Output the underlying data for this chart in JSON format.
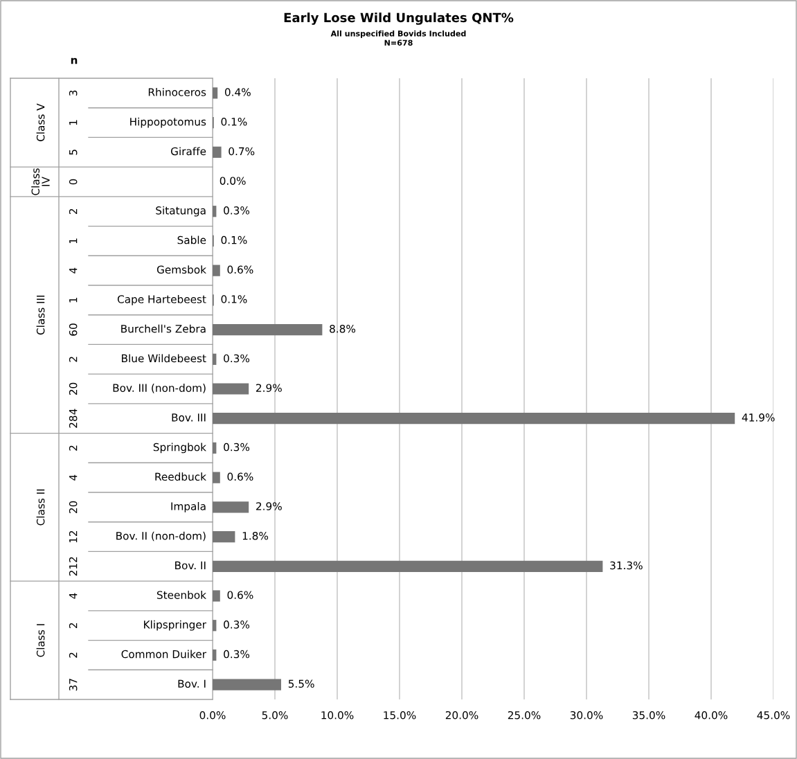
{
  "chart_data": {
    "type": "bar",
    "orientation": "horizontal",
    "title": "Early Lose Wild Ungulates QNT%",
    "subtitle": "All unspecified Bovids Included\nN=678",
    "categories": [
      "Rhinoceros",
      "Hippopotomus",
      "Giraffe",
      null,
      "Sitatunga",
      "Sable",
      "Gemsbok",
      "Cape Hartebeest",
      "Burchell's Zebra",
      "Blue Wildebeest",
      "Bov. III (non-dom)",
      "Bov. III",
      "Springbok",
      "Reedbuck",
      "Impala",
      "Bov. II (non-dom)",
      "Bov. II",
      "Steenbok",
      "Klipspringer",
      "Common Duiker",
      "Bov. I"
    ],
    "y2_categories": [
      "3",
      "1",
      "5",
      "0",
      "2",
      "1",
      "4",
      "1",
      "60",
      "2",
      "20",
      "284",
      "2",
      "4",
      "20",
      "12",
      "212",
      "4",
      "2",
      "2",
      "37"
    ],
    "values": [
      0.4,
      0.1,
      0.7,
      0.0,
      0.3,
      0.1,
      0.6,
      0.1,
      8.8,
      0.3,
      2.9,
      41.9,
      0.3,
      0.6,
      2.9,
      1.8,
      31.3,
      0.6,
      0.3,
      0.3,
      5.5
    ],
    "value_labels": [
      "0.4%",
      "0.1%",
      "0.7%",
      "0.0%",
      "0.3%",
      "0.1%",
      "0.6%",
      "0.1%",
      "8.8%",
      "0.3%",
      "2.9%",
      "41.9%",
      "0.3%",
      "0.6%",
      "2.9%",
      "1.8%",
      "31.3%",
      "0.6%",
      "0.3%",
      "0.3%",
      "5.5%"
    ],
    "color": "#767676",
    "xlim": [
      0,
      45
    ],
    "xticks": [
      {
        "value": 0,
        "label": "0.0%"
      },
      {
        "value": 5,
        "label": "5.0%"
      },
      {
        "value": 10,
        "label": "10.0%"
      },
      {
        "value": 15,
        "label": "15.0%"
      },
      {
        "value": 20,
        "label": "20.0%"
      },
      {
        "value": 25,
        "label": "25.0%"
      },
      {
        "value": 30,
        "label": "30.0%"
      },
      {
        "value": 35,
        "label": "35.0%"
      },
      {
        "value": 40,
        "label": "40.0%"
      },
      {
        "value": 45,
        "label": "45.0%"
      }
    ],
    "grid": "x",
    "legend": false,
    "annotations": [
      "n",
      "Class V",
      "Class IV",
      "Class III",
      "Class II",
      "Class I"
    ]
  }
}
